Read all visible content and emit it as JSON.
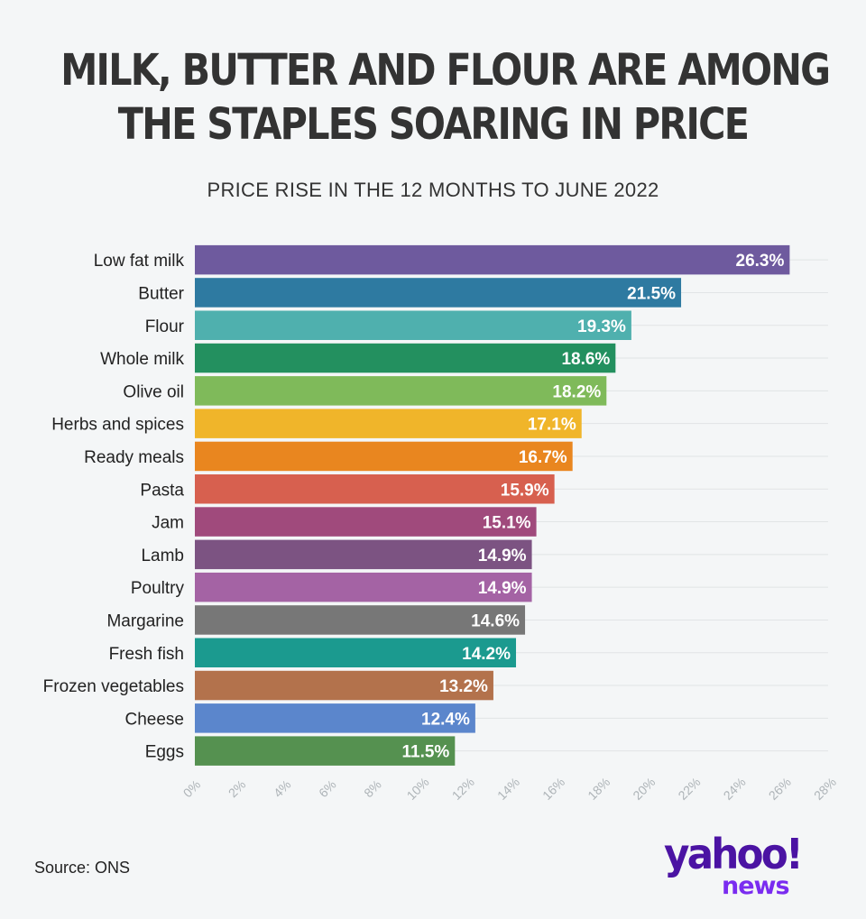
{
  "title_lines": [
    "MILK, BUTTER AND FLOUR ARE AMONG",
    "THE STAPLES SOARING IN PRICE"
  ],
  "subtitle": "PRICE RISE IN THE 12 MONTHS TO JUNE 2022",
  "source": "Source: ONS",
  "logo": {
    "word": "yahoo!",
    "sub": "news"
  },
  "chart_data": {
    "type": "bar",
    "orientation": "horizontal",
    "title": "MILK, BUTTER AND FLOUR ARE AMONG THE STAPLES SOARING IN PRICE",
    "subtitle": "PRICE RISE IN THE 12 MONTHS TO JUNE 2022",
    "xlabel": "",
    "ylabel": "",
    "xlim": [
      0,
      28
    ],
    "grid": true,
    "categories": [
      "Low fat milk",
      "Butter",
      "Flour",
      "Whole milk",
      "Olive oil",
      "Herbs and spices",
      "Ready meals",
      "Pasta",
      "Jam",
      "Lamb",
      "Poultry",
      "Margarine",
      "Fresh fish",
      "Frozen vegetables",
      "Cheese",
      "Eggs"
    ],
    "values": [
      26.3,
      21.5,
      19.3,
      18.6,
      18.2,
      17.1,
      16.7,
      15.9,
      15.1,
      14.9,
      14.9,
      14.6,
      14.2,
      13.2,
      12.4,
      11.5
    ],
    "value_labels": [
      "26.3%",
      "21.5%",
      "19.3%",
      "18.6%",
      "18.2%",
      "17.1%",
      "16.7%",
      "15.9%",
      "15.1%",
      "14.9%",
      "14.9%",
      "14.6%",
      "14.2%",
      "13.2%",
      "12.4%",
      "11.5%"
    ],
    "colors": [
      "#6e5a9e",
      "#2e7aa1",
      "#4fb0ae",
      "#23905f",
      "#7fba5a",
      "#f0b52a",
      "#e9861f",
      "#d7604f",
      "#a04a7c",
      "#7c5382",
      "#a463a4",
      "#777777",
      "#1b9a8f",
      "#b3724c",
      "#5b86cc",
      "#559150"
    ],
    "x_ticks": [
      "0%",
      "2%",
      "4%",
      "6%",
      "8%",
      "10%",
      "12%",
      "14%",
      "16%",
      "18%",
      "20%",
      "22%",
      "24%",
      "26%",
      "28%"
    ]
  }
}
